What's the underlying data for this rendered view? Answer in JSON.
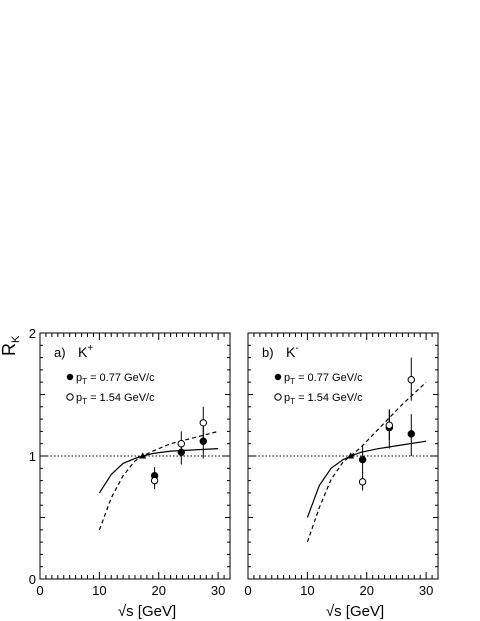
{
  "ylabel": "R",
  "ylabel_sub": "K",
  "chart_data": [
    {
      "type": "scatter",
      "panel_label": "a)",
      "particle": "K",
      "particle_charge": "+",
      "xlabel": "√s [GeV]",
      "xlim": [
        0,
        32
      ],
      "ylim": [
        0,
        2
      ],
      "x_ticks": [
        0,
        10,
        20,
        30
      ],
      "y_ticks": [
        0,
        1,
        2
      ],
      "reference_line": 1,
      "legend": [
        {
          "marker": "filled-circle",
          "label_main": "p",
          "label_sub": "T",
          "label_rest": " = 0.77 GeV/c"
        },
        {
          "marker": "open-circle",
          "label_main": "p",
          "label_sub": "T",
          "label_rest": " = 1.54 GeV/c"
        }
      ],
      "series": [
        {
          "marker": "filled-circle",
          "points": [
            {
              "x": 19.3,
              "y": 0.84,
              "lo": 0.77,
              "hi": 0.91
            },
            {
              "x": 23.8,
              "y": 1.03,
              "lo": 0.93,
              "hi": 1.13
            },
            {
              "x": 27.5,
              "y": 1.12,
              "lo": 0.98,
              "hi": 1.26
            }
          ]
        },
        {
          "marker": "open-circle",
          "points": [
            {
              "x": 19.3,
              "y": 0.8,
              "lo": 0.73,
              "hi": 0.87
            },
            {
              "x": 23.8,
              "y": 1.1,
              "lo": 1.0,
              "hi": 1.2
            },
            {
              "x": 27.5,
              "y": 1.27,
              "lo": 1.12,
              "hi": 1.4
            }
          ]
        },
        {
          "marker": "filled-triangle",
          "points": [
            {
              "x": 17.3,
              "y": 1.0
            }
          ]
        }
      ],
      "curves": [
        {
          "style": "solid",
          "x": [
            10,
            12,
            14,
            16,
            17.3,
            19,
            22,
            26,
            30
          ],
          "y": [
            0.7,
            0.85,
            0.94,
            0.98,
            1.0,
            1.02,
            1.04,
            1.05,
            1.06
          ]
        },
        {
          "style": "dashed",
          "x": [
            10,
            12,
            14,
            16,
            17.3,
            19,
            22,
            26,
            30
          ],
          "y": [
            0.4,
            0.66,
            0.84,
            0.96,
            1.0,
            1.04,
            1.1,
            1.15,
            1.2
          ]
        }
      ]
    },
    {
      "type": "scatter",
      "panel_label": "b)",
      "particle": "K",
      "particle_charge": "-",
      "xlabel": "√s [GeV]",
      "xlim": [
        0,
        32
      ],
      "ylim": [
        0,
        2
      ],
      "x_ticks": [
        0,
        10,
        20,
        30
      ],
      "y_ticks": [
        0,
        1,
        2
      ],
      "reference_line": 1,
      "legend": [
        {
          "marker": "filled-circle",
          "label_main": "p",
          "label_sub": "T",
          "label_rest": " = 0.77 GeV/c"
        },
        {
          "marker": "open-circle",
          "label_main": "p",
          "label_sub": "T",
          "label_rest": " = 1.54 GeV/c"
        }
      ],
      "series": [
        {
          "marker": "filled-circle",
          "points": [
            {
              "x": 19.3,
              "y": 0.97,
              "lo": 0.86,
              "hi": 1.08
            },
            {
              "x": 23.8,
              "y": 1.23,
              "lo": 1.06,
              "hi": 1.38
            },
            {
              "x": 27.5,
              "y": 1.18,
              "lo": 1.0,
              "hi": 1.34
            }
          ]
        },
        {
          "marker": "open-circle",
          "points": [
            {
              "x": 19.3,
              "y": 0.79,
              "lo": 0.72,
              "hi": 0.87
            },
            {
              "x": 23.8,
              "y": 1.25,
              "lo": 1.13,
              "hi": 1.37
            },
            {
              "x": 27.5,
              "y": 1.62,
              "lo": 1.45,
              "hi": 1.8
            }
          ]
        },
        {
          "marker": "filled-triangle",
          "points": [
            {
              "x": 17.3,
              "y": 1.0
            }
          ]
        }
      ],
      "curves": [
        {
          "style": "solid",
          "x": [
            10,
            12,
            14,
            16,
            17.3,
            19,
            22,
            26,
            30
          ],
          "y": [
            0.5,
            0.76,
            0.9,
            0.97,
            1.0,
            1.03,
            1.06,
            1.09,
            1.12
          ]
        },
        {
          "style": "dashed",
          "x": [
            10,
            12,
            14,
            16,
            17.3,
            19,
            22,
            26,
            30
          ],
          "y": [
            0.3,
            0.58,
            0.81,
            0.95,
            1.0,
            1.07,
            1.22,
            1.42,
            1.6
          ]
        }
      ]
    }
  ]
}
